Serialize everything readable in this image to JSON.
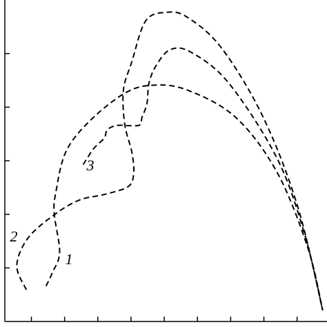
{
  "chart_data": {
    "type": "line",
    "xlim": [
      -0.8,
      8.9
    ],
    "ylim": [
      0,
      6
    ],
    "xticks": [
      0,
      1,
      2,
      3,
      4,
      5,
      6,
      7,
      8
    ],
    "yticks": [
      1,
      2,
      3,
      4,
      5
    ],
    "series": [
      {
        "name": "1",
        "color": "#000",
        "x": [
          0.44,
          0.63,
          0.85,
          0.69,
          0.73,
          1.04,
          1.77,
          2.81,
          3.65,
          4.69,
          6.15,
          7.4,
          8.33,
          8.77
        ],
        "values": [
          0.66,
          0.91,
          1.29,
          2.0,
          2.39,
          3.17,
          3.75,
          4.26,
          4.41,
          4.32,
          3.81,
          2.78,
          1.36,
          0.21
        ]
      },
      {
        "name": "2",
        "color": "#000",
        "x": [
          -0.15,
          -0.44,
          -0.1,
          0.73,
          1.46,
          2.19,
          2.92,
          3.08,
          3.02,
          2.81,
          2.77,
          3.02,
          3.44,
          4.06,
          4.69,
          5.73,
          6.98,
          8.02,
          8.77
        ],
        "values": [
          0.59,
          1.04,
          1.56,
          2.01,
          2.27,
          2.37,
          2.52,
          2.78,
          3.17,
          3.68,
          4.32,
          4.84,
          5.61,
          5.77,
          5.68,
          5.1,
          3.81,
          2.14,
          0.21
        ]
      },
      {
        "name": "3",
        "color": "#000",
        "x": [
          1.56,
          1.88,
          2.19,
          2.29,
          2.6,
          3.23,
          3.33,
          3.48,
          3.54,
          3.75,
          4.17,
          4.79,
          5.94,
          7.4,
          8.23,
          8.77
        ],
        "values": [
          2.93,
          3.23,
          3.42,
          3.58,
          3.66,
          3.66,
          3.81,
          4.07,
          4.45,
          4.77,
          5.07,
          5.03,
          4.45,
          3.04,
          1.62,
          0.21
        ]
      }
    ]
  }
}
